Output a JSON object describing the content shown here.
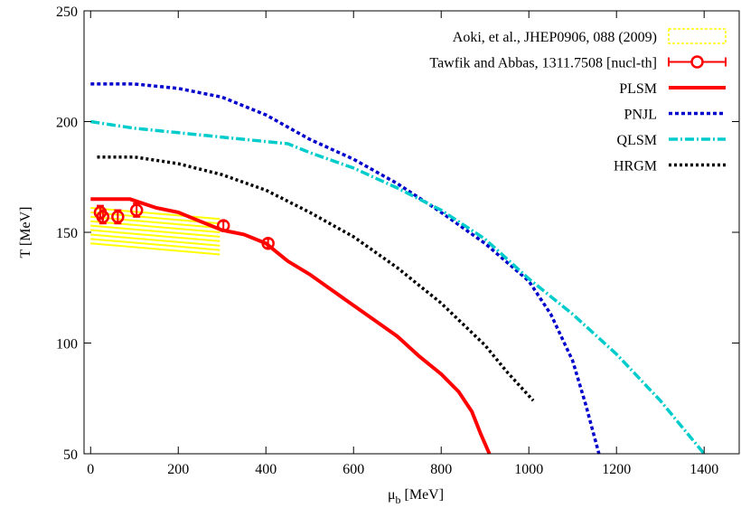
{
  "chart_data": {
    "type": "line",
    "xlabel": "μ",
    "xlabel_sub": "b",
    "xlabel_unit": " [MeV]",
    "ylabel": "T [MeV]",
    "xlim": [
      -15,
      1480
    ],
    "ylim": [
      50,
      250
    ],
    "xticks": [
      0,
      200,
      400,
      600,
      800,
      1000,
      1200,
      1400
    ],
    "yticks": [
      50,
      100,
      150,
      200,
      250
    ],
    "grid": false,
    "legend_position": "top-right",
    "band": {
      "name": "Aoki, et al., JHEP0906, 088 (2009)",
      "color": "#ffff00",
      "lines": [
        {
          "x": [
            0,
            295
          ],
          "y": [
            161,
            156
          ]
        },
        {
          "x": [
            0,
            295
          ],
          "y": [
            159,
            154
          ]
        },
        {
          "x": [
            0,
            295
          ],
          "y": [
            157,
            152
          ]
        },
        {
          "x": [
            0,
            295
          ],
          "y": [
            155,
            150
          ]
        },
        {
          "x": [
            0,
            295
          ],
          "y": [
            153,
            148
          ]
        },
        {
          "x": [
            0,
            295
          ],
          "y": [
            151,
            146
          ]
        },
        {
          "x": [
            0,
            295
          ],
          "y": [
            149,
            144
          ]
        },
        {
          "x": [
            0,
            295
          ],
          "y": [
            147,
            142
          ]
        },
        {
          "x": [
            0,
            295
          ],
          "y": [
            145,
            140
          ]
        }
      ]
    },
    "points": {
      "name": "Tawfik and Abbas, 1311.7508 [nucl-th]",
      "color": "#ff0000",
      "x": [
        22,
        28,
        62,
        105,
        303,
        405
      ],
      "y": [
        159,
        157,
        157,
        160,
        153,
        145
      ],
      "err": [
        3,
        3,
        3,
        3,
        2,
        2
      ]
    },
    "series": [
      {
        "name": "PLSM",
        "color": "#ff0000",
        "dash": "solid",
        "width": 4,
        "x": [
          0,
          90,
          150,
          200,
          250,
          300,
          350,
          400,
          450,
          500,
          550,
          600,
          650,
          700,
          750,
          800,
          840,
          870,
          890,
          910
        ],
        "y": [
          165,
          165,
          161,
          159,
          155,
          151,
          149,
          145,
          137,
          131,
          124,
          117,
          110,
          103,
          94,
          86,
          78,
          69,
          59,
          50
        ]
      },
      {
        "name": "PNJL",
        "color": "#0000cc",
        "dash": "4,3",
        "width": 3.5,
        "x": [
          0,
          100,
          200,
          300,
          400,
          500,
          600,
          700,
          800,
          900,
          1000,
          1050,
          1100,
          1130,
          1160
        ],
        "y": [
          217,
          217,
          215,
          211,
          203,
          192,
          183,
          172,
          159,
          145,
          128,
          113,
          92,
          72,
          50
        ]
      },
      {
        "name": "QLSM",
        "color": "#00cccc",
        "dash": "10,3,2,3",
        "width": 3.5,
        "x": [
          0,
          100,
          200,
          300,
          400,
          450,
          500,
          600,
          700,
          800,
          900,
          1000,
          1100,
          1200,
          1300,
          1400
        ],
        "y": [
          200,
          197,
          195,
          193,
          191,
          190,
          186,
          179,
          170,
          160,
          147,
          129,
          113,
          95,
          74,
          50
        ]
      },
      {
        "name": "HRGM",
        "color": "#000000",
        "dash": "3,3",
        "width": 3.5,
        "x": [
          15,
          100,
          200,
          300,
          400,
          500,
          600,
          700,
          800,
          900,
          950,
          1010
        ],
        "y": [
          184,
          184,
          181,
          176,
          169,
          159,
          148,
          134,
          118,
          99,
          87,
          74
        ]
      }
    ]
  }
}
